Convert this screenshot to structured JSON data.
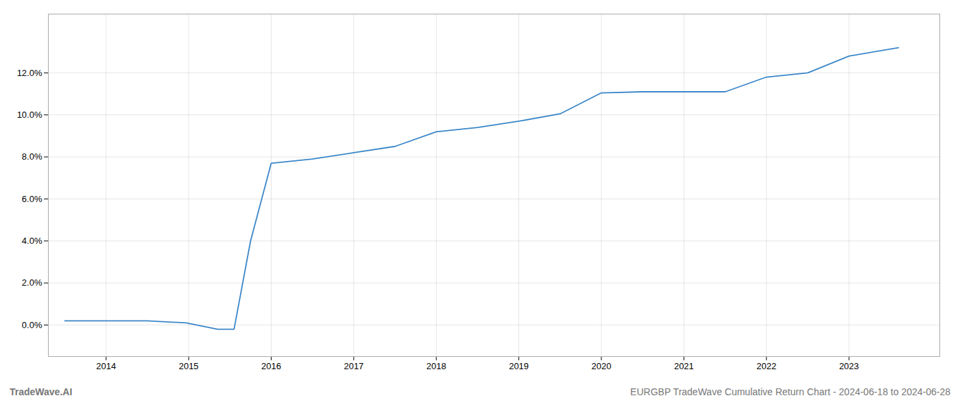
{
  "chart_data": {
    "type": "line",
    "x": [
      2013.5,
      2014.0,
      2014.5,
      2014.97,
      2015.35,
      2015.55,
      2015.75,
      2016.0,
      2016.5,
      2017.0,
      2017.5,
      2018.0,
      2018.5,
      2019.0,
      2019.5,
      2020.0,
      2020.5,
      2021.0,
      2021.5,
      2022.0,
      2022.5,
      2023.0,
      2023.6
    ],
    "values": [
      0.002,
      0.002,
      0.002,
      0.001,
      -0.002,
      -0.002,
      0.04,
      0.077,
      0.079,
      0.082,
      0.085,
      0.092,
      0.094,
      0.097,
      0.1005,
      0.1105,
      0.111,
      0.111,
      0.111,
      0.118,
      0.12,
      0.128,
      0.132
    ],
    "color": "#3a86c8",
    "xlim": [
      2013.3,
      2024.1
    ],
    "ylim": [
      -0.015,
      0.148
    ],
    "xticks": [
      2014,
      2015,
      2016,
      2017,
      2018,
      2019,
      2020,
      2021,
      2022,
      2023
    ],
    "yticks": [
      {
        "value": 0.0,
        "label": "0.0%"
      },
      {
        "value": 0.02,
        "label": "2.0%"
      },
      {
        "value": 0.04,
        "label": "4.0%"
      },
      {
        "value": 0.06,
        "label": "6.0%"
      },
      {
        "value": 0.08,
        "label": "8.0%"
      },
      {
        "value": 0.1,
        "label": "10.0%"
      },
      {
        "value": 0.12,
        "label": "12.0%"
      }
    ],
    "grid": true,
    "annotations": [
      "TradeWave.AI",
      "EURGBP TradeWave Cumulative Return Chart - 2024-06-18 to 2024-06-28"
    ]
  }
}
